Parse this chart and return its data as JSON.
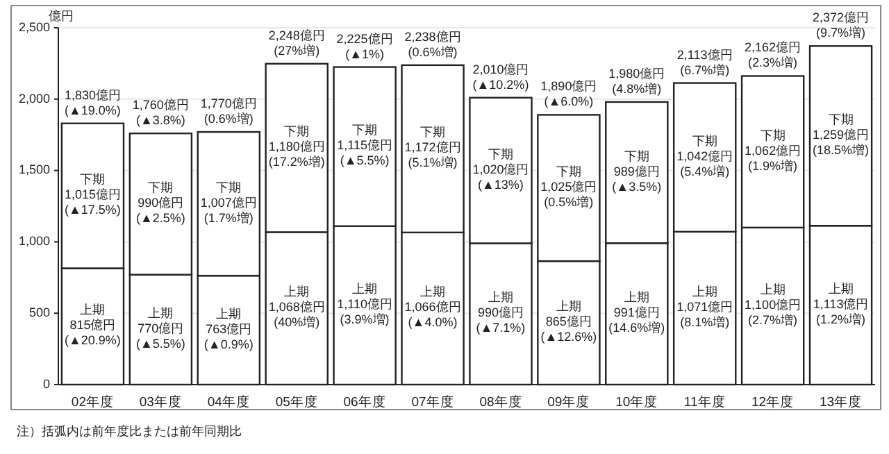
{
  "chart_data": {
    "type": "bar",
    "stacked": true,
    "ylabel": "億円",
    "categories": [
      "02年度",
      "03年度",
      "04年度",
      "05年度",
      "06年度",
      "07年度",
      "08年度",
      "09年度",
      "10年度",
      "11年度",
      "12年度",
      "13年度"
    ],
    "series": [
      {
        "color": "#ffffff",
        "values": [
          815,
          770,
          763,
          1068,
          1110,
          1066,
          990,
          865,
          991,
          1071,
          1100,
          1113
        ],
        "value_labels": [
          "上期\n815億円\n(▲20.9%)",
          "上期\n770億円\n(▲5.5%)",
          "上期\n763億円\n(▲0.9%)",
          "上期\n1,068億円\n(40%増)",
          "上期\n1,110億円\n(3.9%増)",
          "上期\n1,066億円\n(▲4.0%)",
          "上期\n990億円\n(▲7.1%)",
          "上期\n865億円\n(▲12.6%)",
          "上期\n991億円\n(14.6%増)",
          "上期\n1,071億円\n(8.1%増)",
          "上期\n1,100億円\n(2.7%増)",
          "上期\n1,113億円\n(1.2%増)"
        ]
      },
      {
        "color": "#ffffff",
        "values": [
          1015,
          990,
          1007,
          1180,
          1115,
          1172,
          1020,
          1025,
          989,
          1042,
          1062,
          1259
        ],
        "value_labels": [
          "下期\n1,015億円\n(▲17.5%)",
          "下期\n990億円\n(▲2.5%)",
          "下期\n1,007億円\n(1.7%増)",
          "下期\n1,180億円\n(17.2%増)",
          "下期\n1,115億円\n(▲5.5%)",
          "下期\n1,172億円\n(5.1%増)",
          "下期\n1,020億円\n(▲13%)",
          "下期\n1,025億円\n(0.5%増)",
          "下期\n989億円\n(▲3.5%)",
          "下期\n1,042億円\n(5.4%増)",
          "下期\n1,062億円\n(1.9%増)",
          "下期\n1,259億円\n(18.5%増)"
        ]
      }
    ],
    "totals": [
      "1,830億円\n(▲19.0%)",
      "1,760億円\n(▲3.8%)",
      "1,770億円\n(0.6%増)",
      "2,248億円\n(27%増)",
      "2,225億円\n(▲1%)",
      "2,238億円\n(0.6%増)",
      "2,010億円\n(▲10.2%)",
      "1,890億円\n(▲6.0%)",
      "1,980億円\n(4.8%増)",
      "2,113億円\n(6.7%増)",
      "2,162億円\n(2.3%増)",
      "2,372億円\n(9.7%増)"
    ],
    "ylim": [
      0,
      2500
    ],
    "yticks": [
      0,
      500,
      {
        "value": 1000,
        "label": "1,000"
      },
      {
        "value": 1500,
        "label": "1,500"
      },
      {
        "value": 2000,
        "label": "2,000"
      },
      {
        "value": 2500,
        "label": "2,500"
      }
    ],
    "grid": "y",
    "annotations": [
      "注）括弧内は前年度比または前年同期比"
    ]
  }
}
